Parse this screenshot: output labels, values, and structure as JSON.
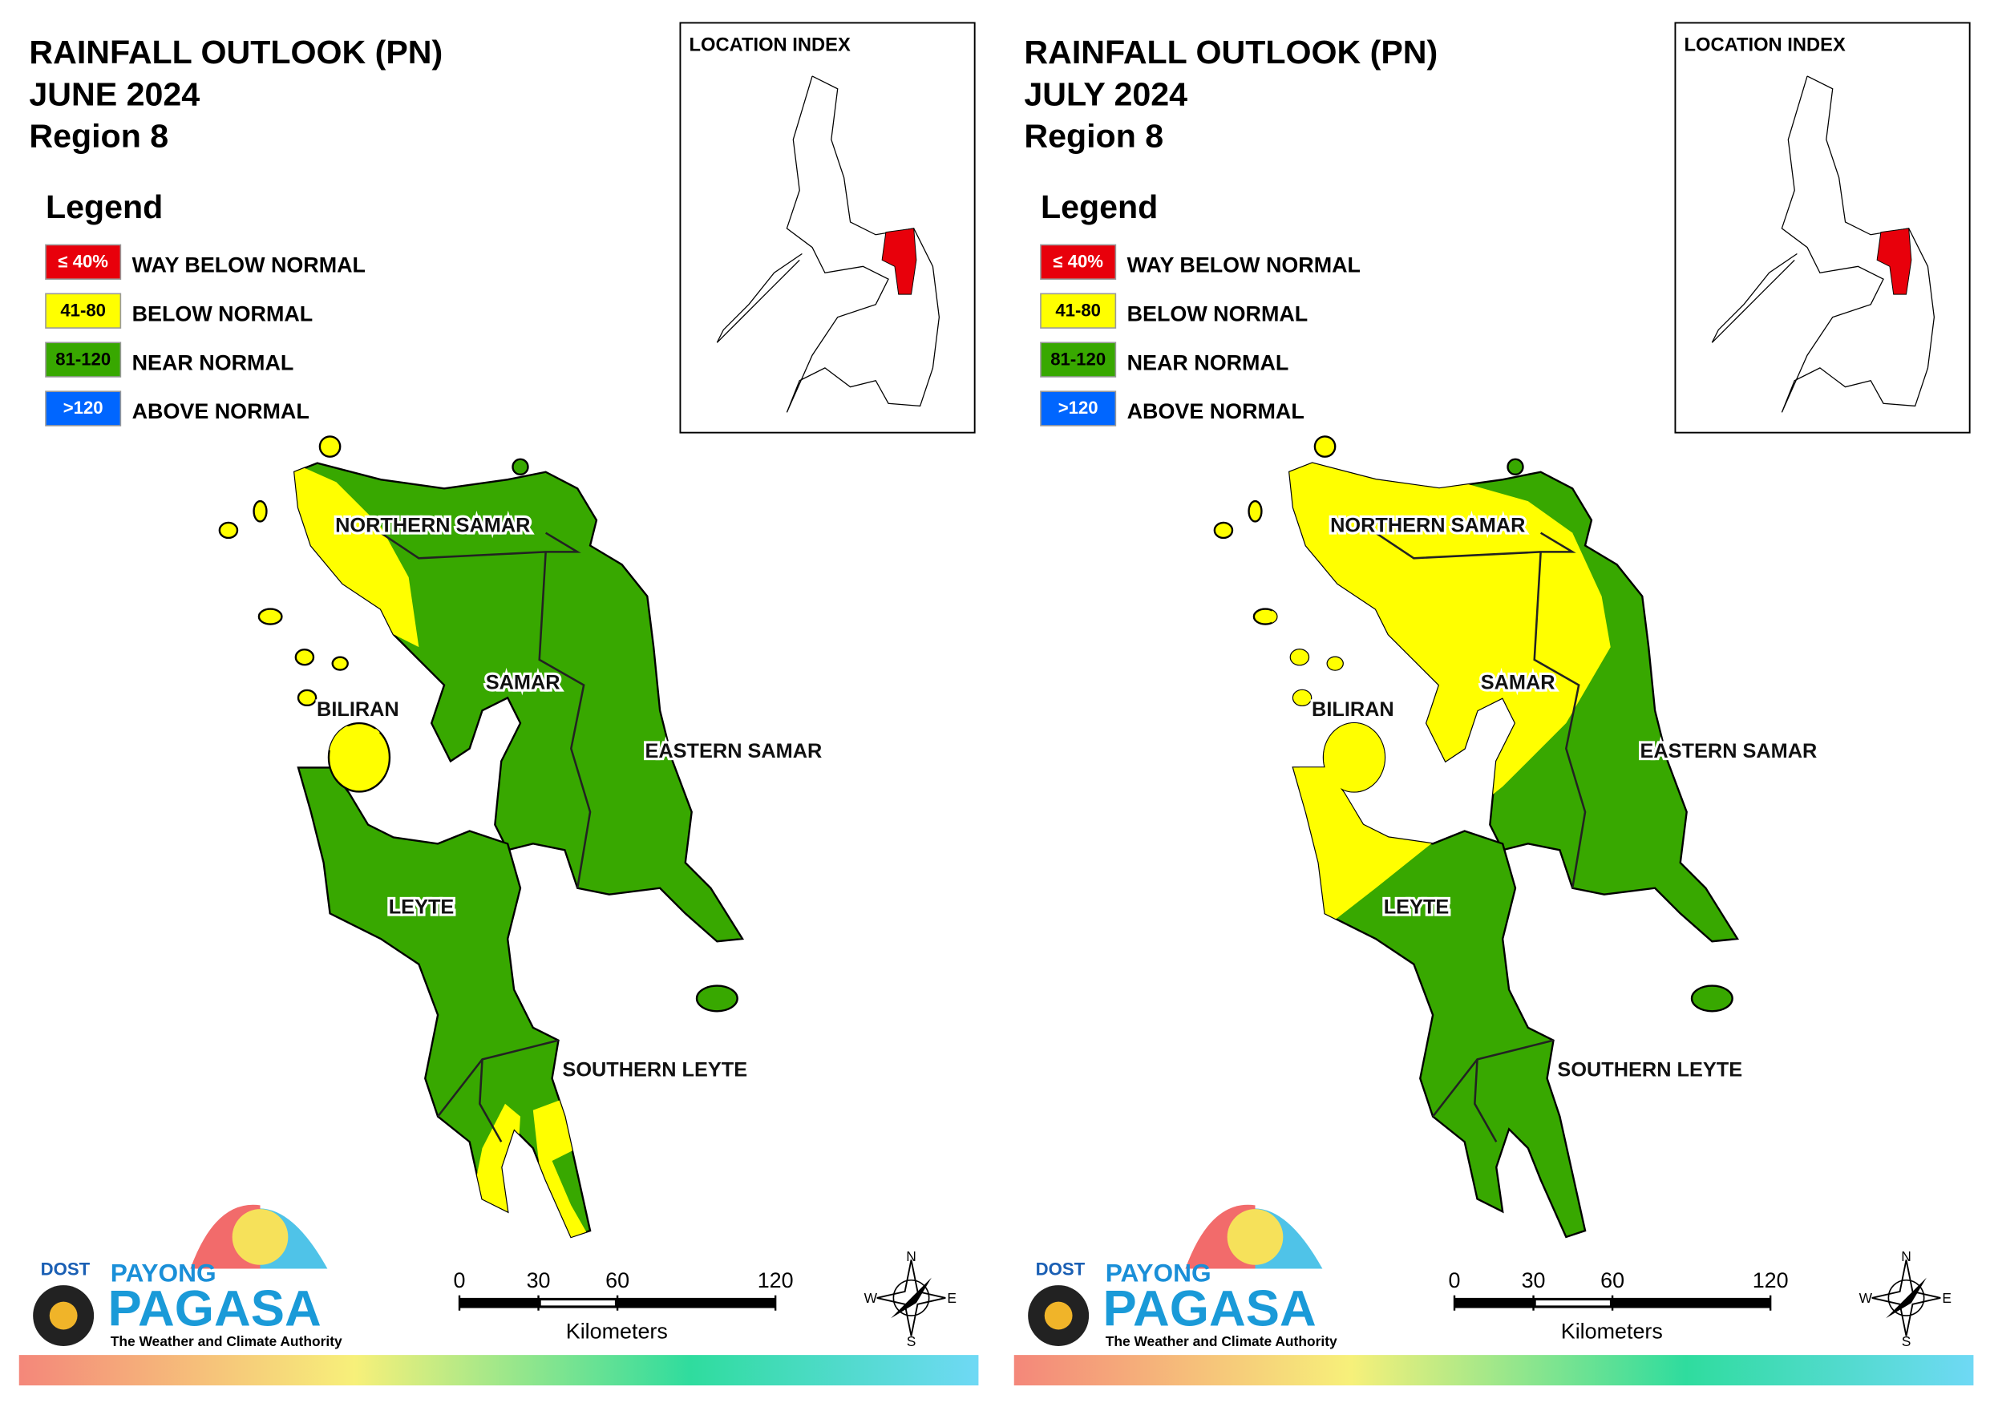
{
  "panels": [
    {
      "title": [
        "RAINFALL OUTLOOK (PN)",
        "JUNE 2024",
        "Region 8"
      ],
      "month": "june"
    },
    {
      "title": [
        "RAINFALL OUTLOOK (PN)",
        "JULY 2024",
        "Region 8"
      ],
      "month": "july"
    }
  ],
  "location_index": "LOCATION INDEX",
  "legend": {
    "title": "Legend",
    "items": [
      {
        "range": "≤ 40%",
        "label": "WAY BELOW NORMAL",
        "color": "#e8000b"
      },
      {
        "range": "41-80",
        "label": "BELOW NORMAL",
        "color": "#ffff00"
      },
      {
        "range": "81-120",
        "label": "NEAR NORMAL",
        "color": "#38a800"
      },
      {
        "range": ">120",
        "label": "ABOVE NORMAL",
        "color": "#0066ff"
      }
    ]
  },
  "map_labels": [
    "NORTHERN SAMAR",
    "SAMAR",
    "EASTERN SAMAR",
    "BILIRAN",
    "LEYTE",
    "SOUTHERN LEYTE"
  ],
  "scale": {
    "ticks": [
      0,
      30,
      60,
      120
    ],
    "unit": "Kilometers"
  },
  "compass": {
    "n": "N",
    "e": "E",
    "s": "S",
    "w": "W"
  },
  "logo": {
    "dost": "DOST",
    "payong": "PAYONG",
    "pagasa": "PAGASA",
    "tagline": "The Weather and Climate Authority"
  }
}
